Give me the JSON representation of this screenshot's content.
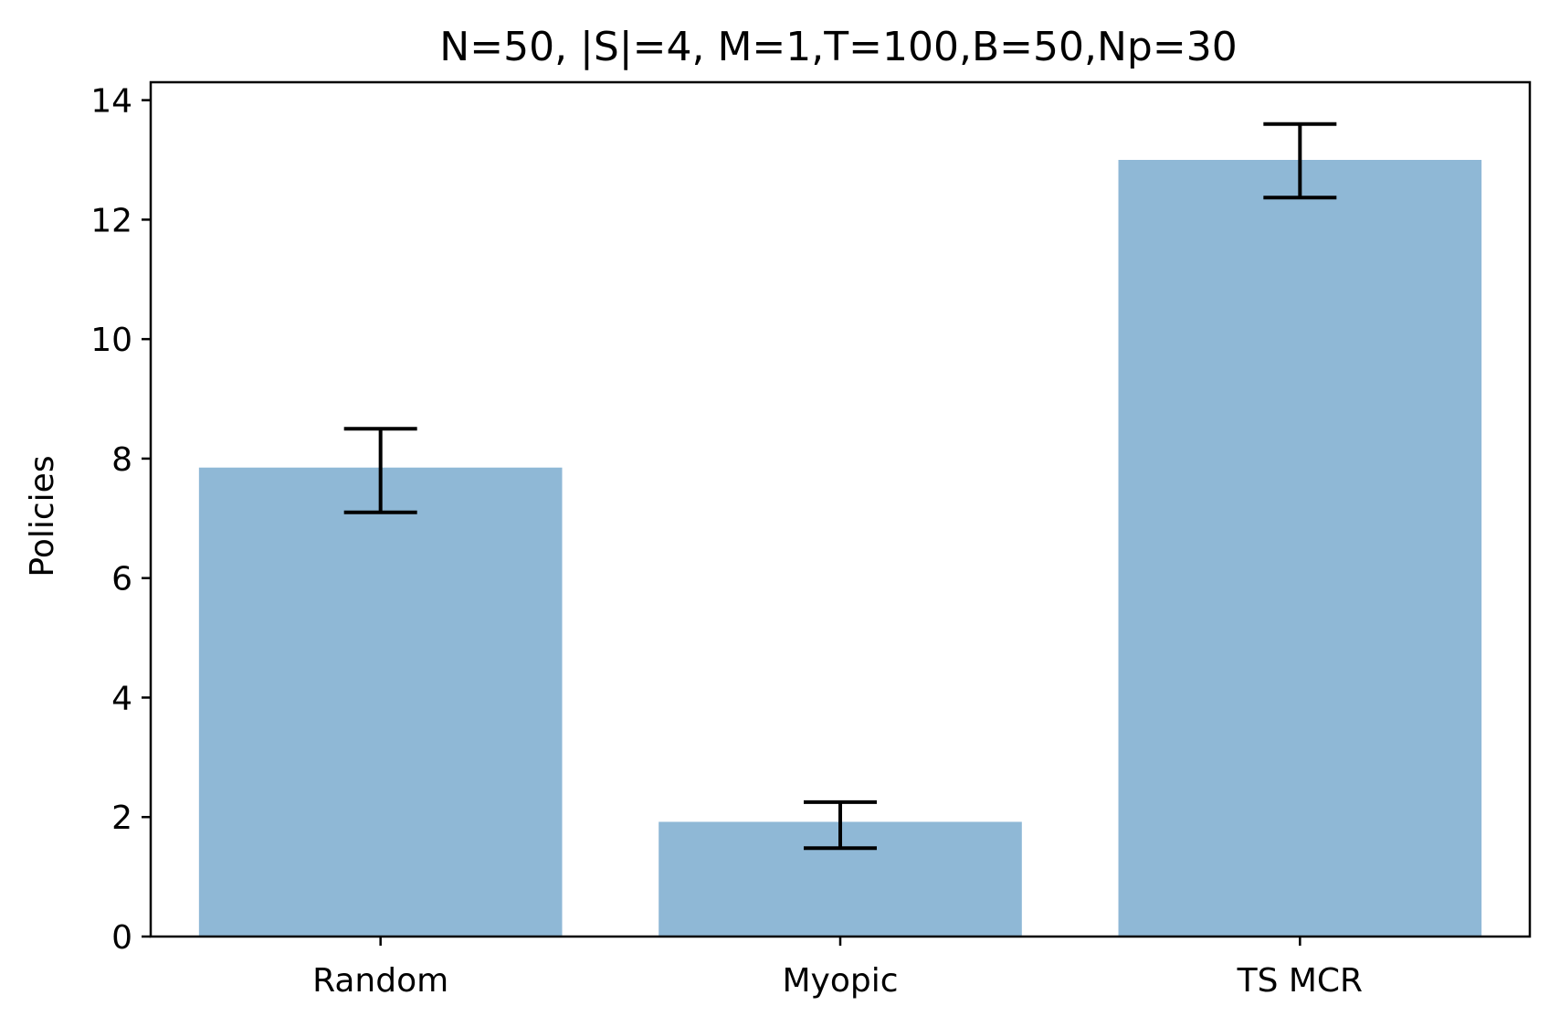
{
  "chart_data": {
    "type": "bar",
    "title": "N=50, |S|=4, M=1,T=100,B=50,Np=30",
    "xlabel": "",
    "ylabel": "Policies",
    "categories": [
      "Random",
      "Myopic",
      "TS MCR"
    ],
    "values": [
      7.85,
      1.92,
      13.0
    ],
    "error_low": [
      7.1,
      1.48,
      12.37
    ],
    "error_high": [
      8.5,
      2.25,
      13.6
    ],
    "ylim": [
      0,
      14.3
    ],
    "yticks": [
      0,
      2,
      4,
      6,
      8,
      10,
      12,
      14
    ],
    "grid": false,
    "legend": "none",
    "bar_color": "#8fb8d6",
    "error_color": "#000000"
  }
}
